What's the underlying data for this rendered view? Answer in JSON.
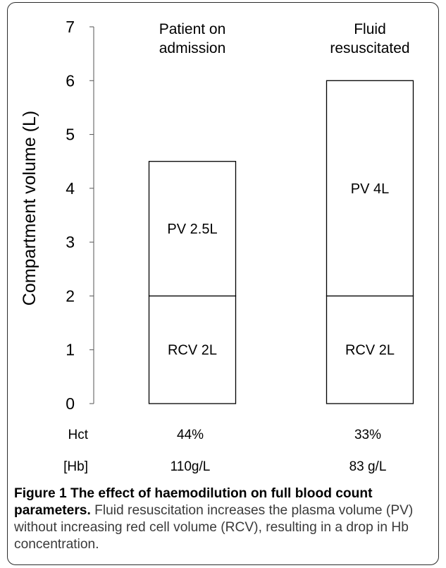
{
  "chart_data": {
    "type": "bar",
    "stacked": true,
    "ylabel": "Compartment volume (L)",
    "ylim": [
      0,
      7
    ],
    "yticks": [
      0,
      1,
      2,
      3,
      4,
      5,
      6,
      7
    ],
    "grid": false,
    "legend": "none",
    "categories": [
      "Patient on admission",
      "Fluid resuscitated"
    ],
    "category_lines": [
      [
        "Patient on",
        "admission"
      ],
      [
        "Fluid",
        "resuscitated"
      ]
    ],
    "series": [
      {
        "segment": "RCV",
        "values": [
          2,
          2
        ],
        "labels": [
          "RCV 2L",
          "RCV 2L"
        ]
      },
      {
        "segment": "PV",
        "values": [
          2.5,
          4
        ],
        "labels": [
          "PV 2.5L",
          "PV 4L"
        ]
      }
    ],
    "rows": [
      {
        "label": "Hct",
        "values": [
          "44%",
          "33%"
        ]
      },
      {
        "label": "[Hb]",
        "values": [
          "110g/L",
          "83 g/L"
        ]
      }
    ],
    "colors": {
      "bar_fill": "#ffffff",
      "bar_stroke": "#000000",
      "axis": "#555555"
    }
  },
  "caption": {
    "label": "Figure 1",
    "title": "The effect of haemodilution on full blood count parameters.",
    "text": "Fluid resuscitation increases the plasma volume (PV) without increasing red cell volume (RCV), resulting in a drop in Hb concentration."
  }
}
